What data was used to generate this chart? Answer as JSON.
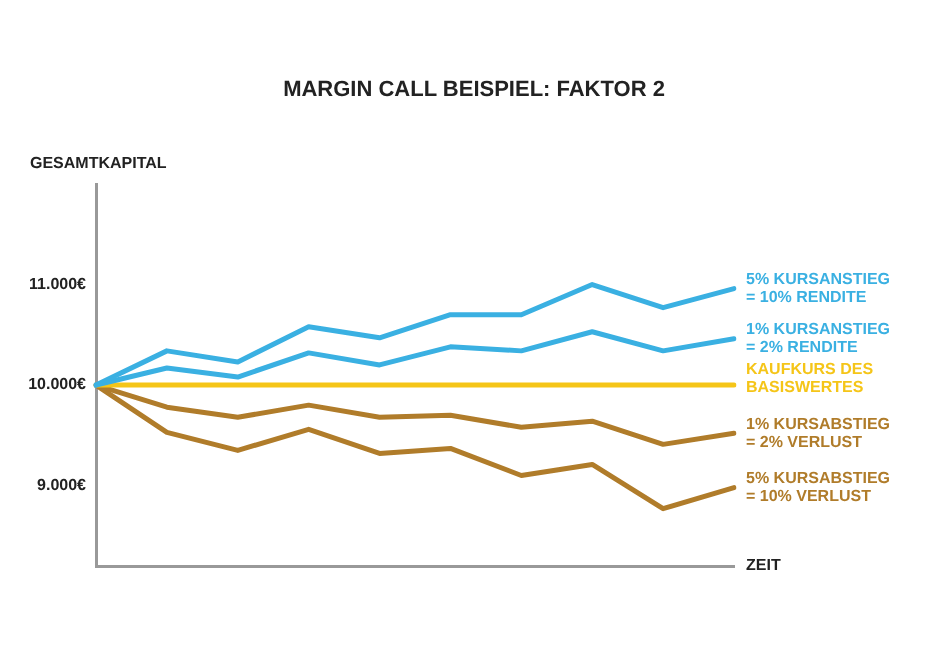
{
  "chart_data": {
    "type": "line",
    "title": "MARGIN CALL BEISPIEL: FAKTOR 2",
    "xlabel": "ZEIT",
    "ylabel": "GESAMTKAPITAL",
    "categories": [
      null,
      null,
      null,
      null,
      null,
      null,
      null,
      null,
      null,
      null
    ],
    "series": [
      {
        "name": "5% KURSANSTIEG\n= 10% RENDITE",
        "color": "#3ab0e2",
        "values": [
          10000,
          10340,
          10230,
          10580,
          10470,
          10700,
          10700,
          11000,
          10770,
          10960
        ]
      },
      {
        "name": "1% KURSANSTIEG\n= 2% RENDITE",
        "color": "#3ab0e2",
        "values": [
          10000,
          10170,
          10080,
          10320,
          10200,
          10380,
          10340,
          10530,
          10340,
          10460
        ]
      },
      {
        "name": "KAUFKURS DES\nBASISWERTES",
        "color": "#f5c518",
        "values": [
          10000,
          10000,
          10000,
          10000,
          10000,
          10000,
          10000,
          10000,
          10000,
          10000
        ]
      },
      {
        "name": "1% KURSABSTIEG\n= 2% VERLUST",
        "color": "#b07c2a",
        "values": [
          10000,
          9780,
          9680,
          9800,
          9680,
          9700,
          9580,
          9640,
          9410,
          9520
        ]
      },
      {
        "name": "5% KURSABSTIEG\n= 10% VERLUST",
        "color": "#b07c2a",
        "values": [
          10000,
          9530,
          9350,
          9560,
          9320,
          9370,
          9100,
          9210,
          8770,
          8980
        ]
      }
    ],
    "ylim": [
      8200,
      12000
    ],
    "yticks": [
      {
        "value": 9000,
        "label": "9.000€"
      },
      {
        "value": 10000,
        "label": "10.000€"
      },
      {
        "value": 11000,
        "label": "11.000€"
      }
    ],
    "grid": false,
    "legend": false,
    "marker": "none",
    "line_style": "solid",
    "tick_labels": "y"
  }
}
